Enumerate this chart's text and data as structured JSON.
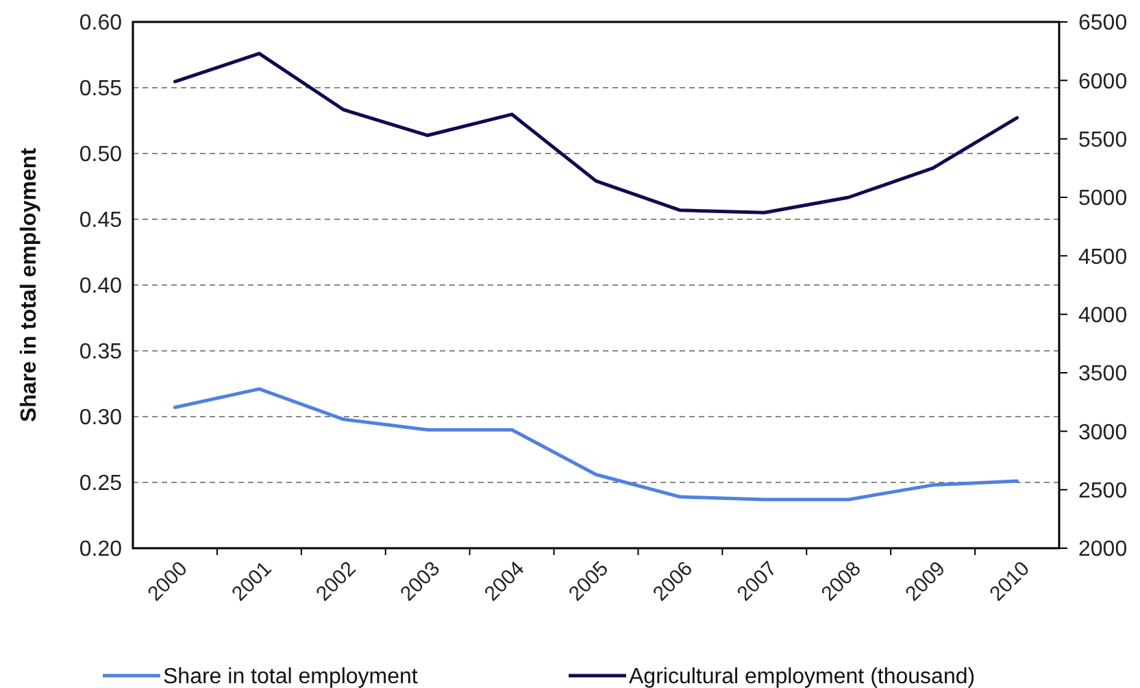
{
  "chart_data": {
    "type": "line",
    "ylabel": "Share in total employment",
    "categories": [
      "2000",
      "2001",
      "2002",
      "2003",
      "2004",
      "2005",
      "2006",
      "2007",
      "2008",
      "2009",
      "2010"
    ],
    "series": [
      {
        "name": "Share in total employment",
        "color": "#4f81e0",
        "values": [
          0.307,
          0.321,
          0.298,
          0.29,
          0.29,
          0.256,
          0.239,
          0.237,
          0.237,
          0.248,
          0.251
        ]
      },
      {
        "name": "Agricultural employment (thousand)",
        "color": "#0c0c52",
        "axis": "y2",
        "values": [
          5990,
          6230,
          5750,
          5530,
          5710,
          5140,
          4890,
          4870,
          5000,
          5250,
          5680
        ]
      }
    ],
    "ylim": [
      0.2,
      0.6
    ],
    "yticks": [
      {
        "value": 0.2,
        "label": "0.20"
      },
      {
        "value": 0.25,
        "label": "0.25"
      },
      {
        "value": 0.3,
        "label": "0.30"
      },
      {
        "value": 0.35,
        "label": "0.35"
      },
      {
        "value": 0.4,
        "label": "0.40"
      },
      {
        "value": 0.45,
        "label": "0.45"
      },
      {
        "value": 0.5,
        "label": "0.50"
      },
      {
        "value": 0.55,
        "label": "0.55"
      },
      {
        "value": 0.6,
        "label": "0.60"
      }
    ],
    "y2lim": [
      2000,
      6500
    ],
    "y2ticks": [
      2000,
      2500,
      3000,
      3500,
      4000,
      4500,
      5000,
      5500,
      6000,
      6500
    ],
    "grid": "y",
    "legend": "bottom",
    "marker": "none",
    "line_style": "solid"
  }
}
